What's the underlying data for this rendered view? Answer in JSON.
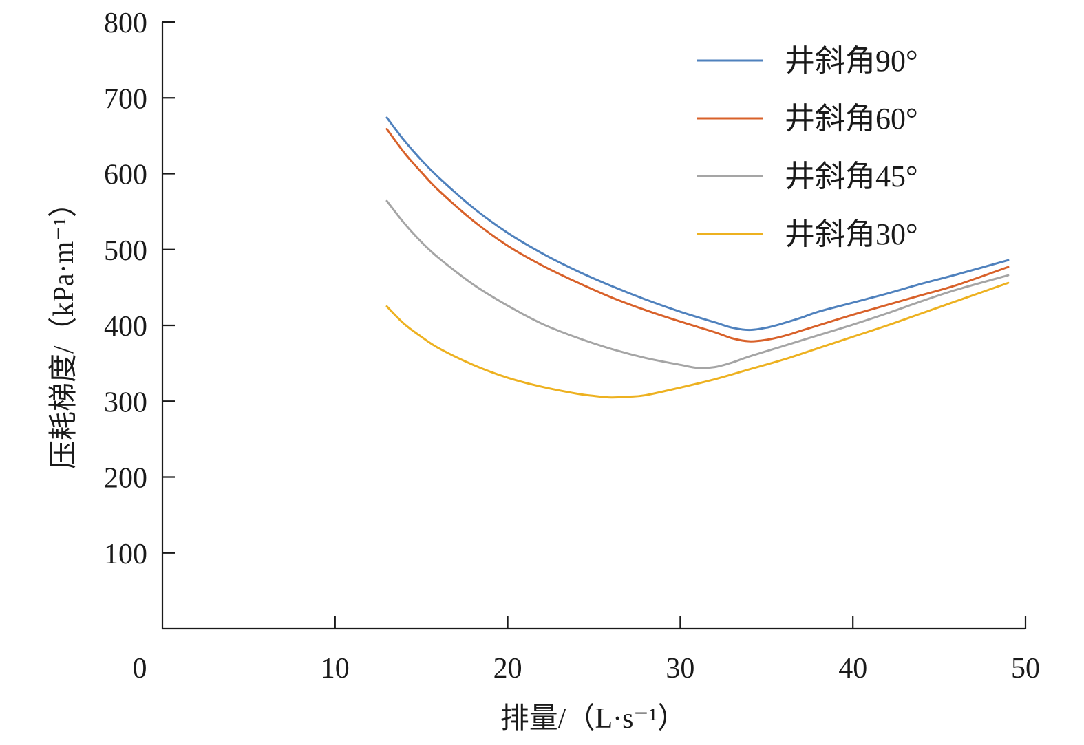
{
  "chart_data": {
    "type": "line",
    "title": "",
    "xlabel": "排量/（L·s⁻¹）",
    "ylabel": "压耗梯度/（kPa·m⁻¹）",
    "xlim": [
      0,
      50
    ],
    "ylim": [
      0,
      800
    ],
    "x_ticks": [
      "0",
      "10",
      "20",
      "30",
      "40",
      "50"
    ],
    "y_ticks": [
      "100",
      "200",
      "300",
      "400",
      "500",
      "600",
      "700",
      "800"
    ],
    "grid": false,
    "legend_position": "top-right",
    "series": [
      {
        "name": "井斜角90°",
        "color": "#4f81bd",
        "x": [
          13,
          14,
          15,
          16,
          18,
          20,
          22,
          24,
          26,
          28,
          30,
          32,
          33,
          34,
          35,
          36,
          37,
          38,
          40,
          42,
          44,
          46,
          49
        ],
        "y": [
          674,
          644,
          618,
          595,
          555,
          522,
          495,
          472,
          452,
          434,
          418,
          404,
          397,
          394,
          397,
          403,
          410,
          418,
          430,
          442,
          455,
          467,
          486
        ]
      },
      {
        "name": "井斜角60°",
        "color": "#d8612a",
        "x": [
          13,
          14,
          15,
          16,
          18,
          20,
          22,
          24,
          26,
          28,
          30,
          32,
          33,
          34,
          35,
          36,
          37,
          38,
          40,
          42,
          44,
          46,
          49
        ],
        "y": [
          659,
          628,
          602,
          578,
          538,
          505,
          479,
          457,
          437,
          420,
          405,
          391,
          383,
          379,
          381,
          386,
          393,
          400,
          414,
          427,
          440,
          453,
          477
        ]
      },
      {
        "name": "井斜角45°",
        "color": "#a5a5a5",
        "x": [
          13,
          14,
          15,
          16,
          18,
          20,
          22,
          24,
          26,
          28,
          30,
          31,
          32,
          33,
          34,
          36,
          38,
          40,
          42,
          44,
          46,
          49
        ],
        "y": [
          564,
          535,
          510,
          489,
          454,
          426,
          402,
          384,
          369,
          357,
          348,
          344,
          345,
          351,
          359,
          373,
          387,
          401,
          416,
          432,
          447,
          466
        ]
      },
      {
        "name": "井斜角30°",
        "color": "#edb120",
        "x": [
          13,
          14,
          15,
          16,
          18,
          20,
          22,
          24,
          25,
          26,
          27,
          28,
          30,
          32,
          34,
          36,
          38,
          40,
          42,
          44,
          46,
          49
        ],
        "y": [
          425,
          402,
          385,
          370,
          348,
          331,
          319,
          310,
          307,
          305,
          306,
          308,
          318,
          329,
          342,
          355,
          370,
          385,
          400,
          416,
          432,
          456
        ]
      }
    ]
  }
}
